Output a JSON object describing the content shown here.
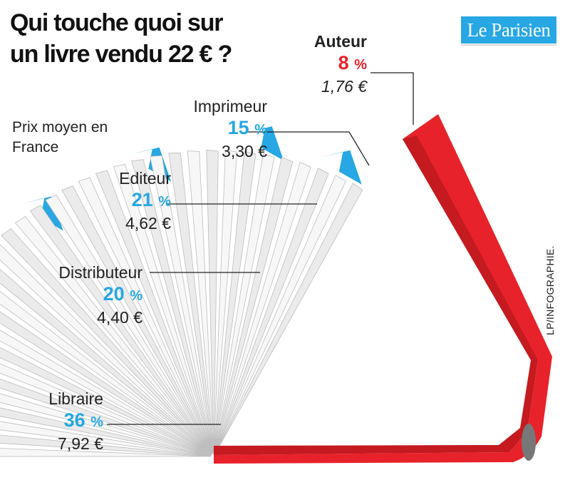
{
  "chart_data": {
    "type": "pie",
    "title": "Qui touche quoi sur un livre vendu 22 € ?",
    "subtitle": "Prix moyen en France",
    "unit": "%",
    "slices": [
      {
        "label": "Auteur",
        "percent_label": "8",
        "value": 8,
        "amount": "1,76 €",
        "color": "#e8222a"
      },
      {
        "label": "Imprimeur",
        "percent_label": "15",
        "value": 15,
        "amount": "3,30 €",
        "color": "#27a7e3"
      },
      {
        "label": "Editeur",
        "percent_label": "21",
        "value": 21,
        "amount": "4,62 €",
        "color": "#27a7e3"
      },
      {
        "label": "Distributeur",
        "percent_label": "20",
        "value": 20,
        "amount": "4,40 €",
        "color": "#27a7e3"
      },
      {
        "label": "Libraire",
        "percent_label": "36",
        "value": 36,
        "amount": "7,92 €",
        "color": "#27a7e3"
      }
    ],
    "pct_symbol": "%"
  },
  "logo": {
    "text": "Le Parisien",
    "color": "#27a7e3"
  },
  "credit": "LP/INFOGRAPHIE.",
  "colors": {
    "cover": "#e8222a",
    "tab": "#27a7e3",
    "page": "#f2f2f2"
  }
}
